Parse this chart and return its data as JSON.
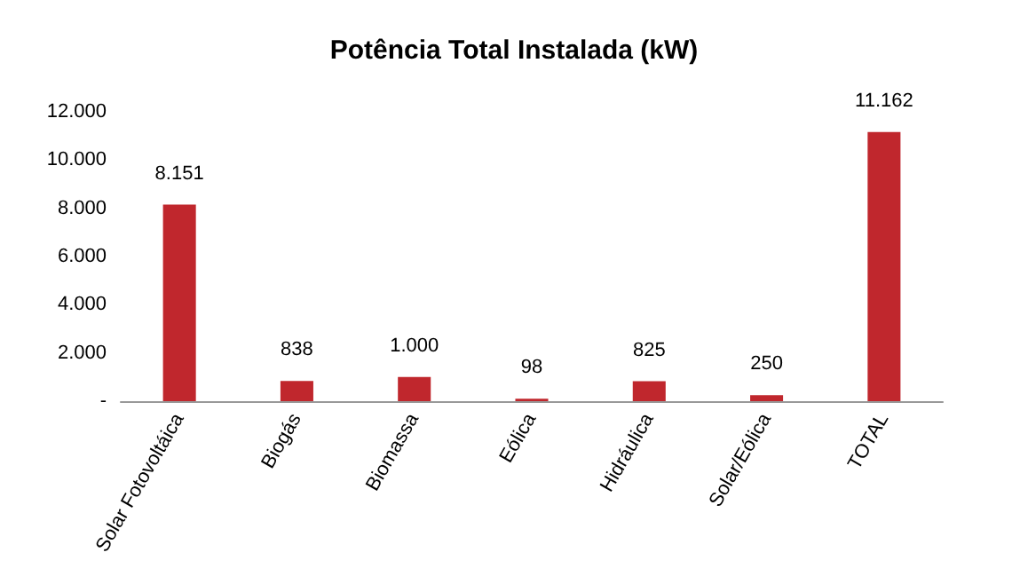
{
  "chart_data": {
    "type": "bar",
    "title": "Potência Total Instalada (kW)",
    "categories": [
      "Solar Fotovoltáica",
      "Biogás",
      "Biomassa",
      "Eólica",
      "Hidráulica",
      "Solar/Eólica",
      "TOTAL"
    ],
    "values": [
      8151,
      838,
      1000,
      98,
      825,
      250,
      11162
    ],
    "value_labels": [
      "8.151",
      "838",
      "1.000",
      "98",
      "825",
      "250",
      "11.162"
    ],
    "color": "#c0272d",
    "ylim": [
      0,
      12000
    ],
    "yticks": [
      {
        "value": 0,
        "label": "-"
      },
      {
        "value": 2000,
        "label": "2.000"
      },
      {
        "value": 4000,
        "label": "4.000"
      },
      {
        "value": 6000,
        "label": "6.000"
      },
      {
        "value": 8000,
        "label": "8.000"
      },
      {
        "value": 10000,
        "label": "10.000"
      },
      {
        "value": 12000,
        "label": "12.000"
      }
    ],
    "grid": false
  }
}
